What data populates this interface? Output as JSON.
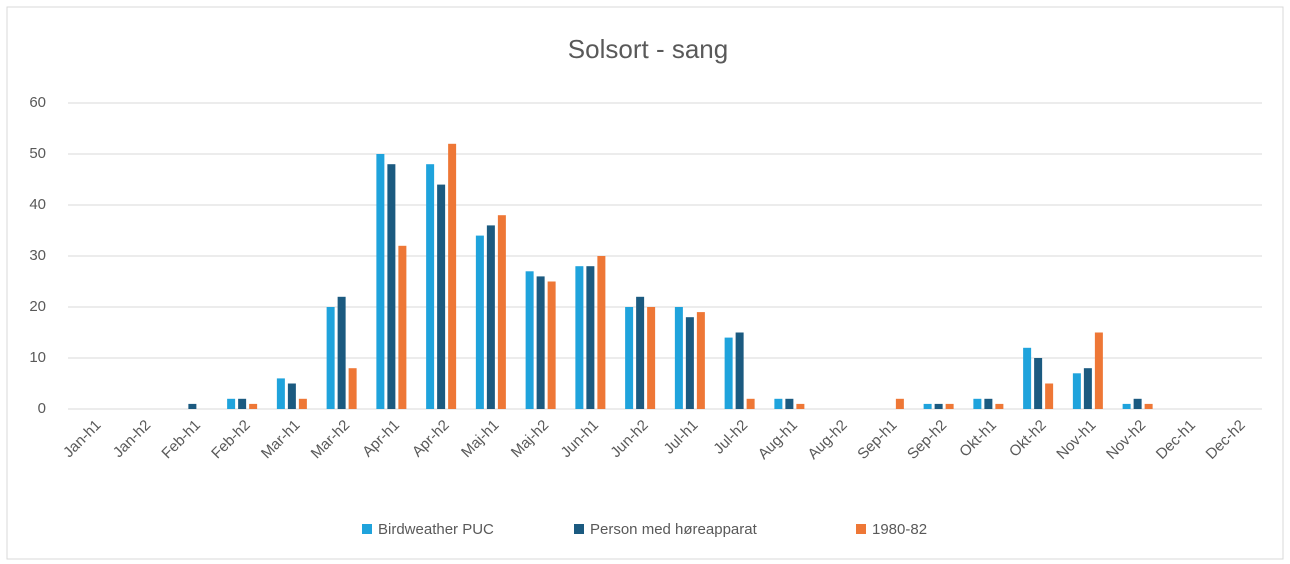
{
  "chart_data": {
    "type": "bar",
    "title": "Solsort - sang",
    "categories": [
      "Jan-h1",
      "Jan-h2",
      "Feb-h1",
      "Feb-h2",
      "Mar-h1",
      "Mar-h2",
      "Apr-h1",
      "Apr-h2",
      "Maj-h1",
      "Maj-h2",
      "Jun-h1",
      "Jun-h2",
      "Jul-h1",
      "Jul-h2",
      "Aug-h1",
      "Aug-h2",
      "Sep-h1",
      "Sep-h2",
      "Okt-h1",
      "Okt-h2",
      "Nov-h1",
      "Nov-h2",
      "Dec-h1",
      "Dec-h2"
    ],
    "series": [
      {
        "name": "Birdweather PUC",
        "color": "#1fa3dc",
        "values": [
          0,
          0,
          0,
          2,
          6,
          20,
          50,
          48,
          34,
          27,
          28,
          20,
          20,
          14,
          2,
          0,
          0,
          1,
          2,
          12,
          7,
          1,
          0,
          0
        ]
      },
      {
        "name": "Person med høreapparat",
        "color": "#1b5a80",
        "values": [
          0,
          0,
          1,
          2,
          5,
          22,
          48,
          44,
          36,
          26,
          28,
          22,
          18,
          15,
          2,
          0,
          0,
          1,
          2,
          10,
          8,
          2,
          0,
          0
        ]
      },
      {
        "name": "1980-82",
        "color": "#ee7736",
        "values": [
          0,
          0,
          0,
          1,
          2,
          8,
          32,
          52,
          38,
          25,
          30,
          20,
          19,
          2,
          1,
          0,
          2,
          1,
          1,
          5,
          15,
          1,
          0,
          0
        ]
      }
    ],
    "ylim": [
      0,
      60
    ],
    "yticks": [
      0,
      10,
      20,
      30,
      40,
      50,
      60
    ],
    "grid": true,
    "legend": "bottom"
  }
}
